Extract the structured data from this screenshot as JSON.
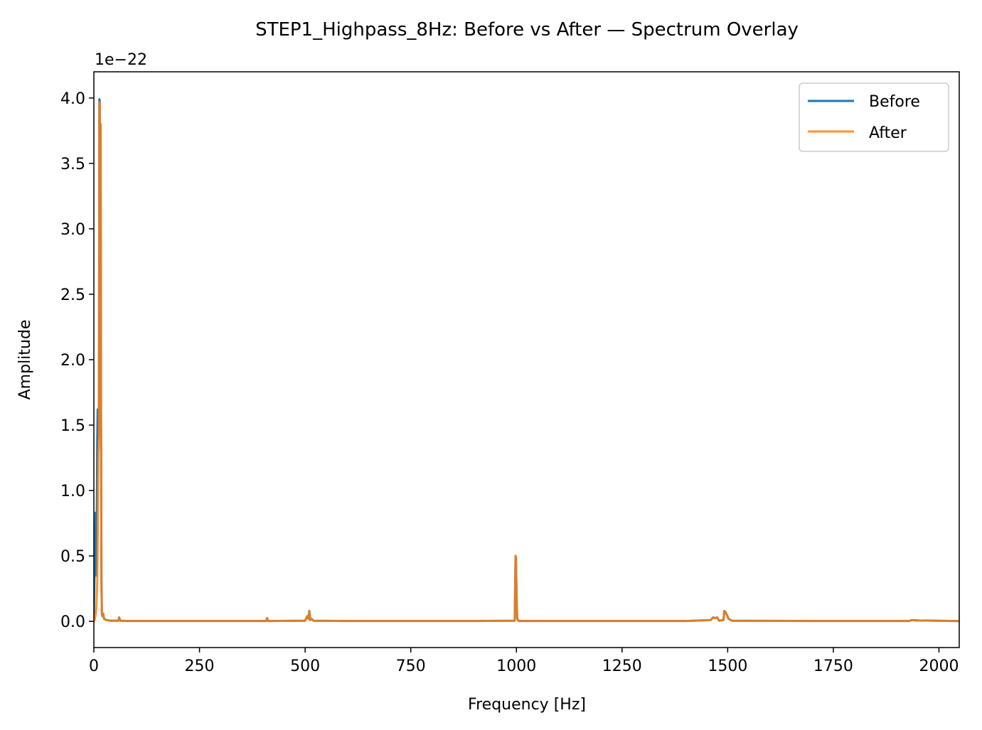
{
  "chart_data": {
    "type": "line",
    "title": "STEP1_Highpass_8Hz: Before vs After — Spectrum Overlay",
    "xlabel": "Frequency [Hz]",
    "ylabel": "Amplitude",
    "y_offset_label": "1e−22",
    "y_scale_factor": 1e-22,
    "xlim": [
      0,
      2048
    ],
    "ylim": [
      -0.2,
      4.2
    ],
    "xticks": [
      0,
      250,
      500,
      750,
      1000,
      1250,
      1500,
      1750,
      2000
    ],
    "xtick_labels": [
      "0",
      "250",
      "500",
      "750",
      "1000",
      "1250",
      "1500",
      "1750",
      "2000"
    ],
    "yticks": [
      0.0,
      0.5,
      1.0,
      1.5,
      2.0,
      2.5,
      3.0,
      3.5,
      4.0
    ],
    "ytick_labels": [
      "0.0",
      "0.5",
      "1.0",
      "1.5",
      "2.0",
      "2.5",
      "3.0",
      "3.5",
      "4.0"
    ],
    "grid": false,
    "legend_position": "top-right",
    "series": [
      {
        "name": "Before",
        "color": "#1f77b4",
        "x": [
          0,
          2,
          4,
          6,
          8,
          9,
          10,
          11,
          12,
          13,
          14,
          15,
          16,
          17,
          18,
          19,
          20,
          22,
          24,
          30,
          40,
          58,
          60,
          62,
          80,
          200,
          408,
          410,
          412,
          500,
          505,
          508,
          510,
          512,
          515,
          520,
          600,
          900,
          996,
          998,
          999,
          1000,
          1001,
          1002,
          1005,
          1100,
          1400,
          1460,
          1465,
          1470,
          1475,
          1480,
          1490,
          1492,
          1495,
          1498,
          1502,
          1510,
          1700,
          1930,
          1935,
          1945,
          1960,
          1970,
          1980,
          2048
        ],
        "y": [
          0.02,
          0.45,
          0.83,
          0.35,
          1.37,
          1.62,
          1.5,
          1.4,
          1.55,
          3.99,
          3.98,
          3.5,
          3.8,
          1.6,
          0.3,
          0.06,
          0.04,
          0.06,
          0.02,
          0.01,
          0.005,
          0.005,
          0.03,
          0.005,
          0.003,
          0.003,
          0.003,
          0.025,
          0.003,
          0.005,
          0.04,
          0.02,
          0.08,
          0.01,
          0.02,
          0.005,
          0.003,
          0.003,
          0.005,
          0.5,
          0.48,
          0.27,
          0.1,
          0.02,
          0.003,
          0.003,
          0.003,
          0.01,
          0.03,
          0.025,
          0.03,
          0.005,
          0.01,
          0.08,
          0.07,
          0.05,
          0.02,
          0.005,
          0.003,
          0.003,
          0.01,
          0.008,
          0.006,
          0.007,
          0.006,
          0.002
        ]
      },
      {
        "name": "After",
        "color": "#ff7f0e",
        "x": [
          0,
          2,
          4,
          6,
          8,
          9,
          10,
          11,
          12,
          13,
          14,
          15,
          16,
          17,
          18,
          19,
          20,
          22,
          24,
          30,
          40,
          58,
          60,
          62,
          80,
          200,
          408,
          410,
          412,
          500,
          505,
          508,
          510,
          512,
          515,
          520,
          600,
          900,
          996,
          998,
          999,
          1000,
          1001,
          1002,
          1005,
          1100,
          1400,
          1460,
          1465,
          1470,
          1475,
          1480,
          1490,
          1492,
          1495,
          1498,
          1502,
          1510,
          1700,
          1930,
          1935,
          1945,
          1960,
          1970,
          1980,
          2048
        ],
        "y": [
          0.0,
          0.01,
          0.05,
          0.1,
          0.3,
          0.6,
          1.0,
          1.3,
          1.35,
          3.95,
          3.97,
          3.5,
          3.8,
          1.55,
          0.3,
          0.06,
          0.04,
          0.06,
          0.02,
          0.01,
          0.005,
          0.005,
          0.03,
          0.005,
          0.003,
          0.003,
          0.003,
          0.025,
          0.003,
          0.005,
          0.04,
          0.02,
          0.08,
          0.01,
          0.02,
          0.005,
          0.003,
          0.003,
          0.005,
          0.5,
          0.48,
          0.27,
          0.1,
          0.02,
          0.003,
          0.003,
          0.003,
          0.01,
          0.03,
          0.025,
          0.03,
          0.005,
          0.01,
          0.08,
          0.07,
          0.05,
          0.02,
          0.005,
          0.003,
          0.003,
          0.01,
          0.008,
          0.006,
          0.007,
          0.006,
          0.002
        ]
      }
    ]
  }
}
